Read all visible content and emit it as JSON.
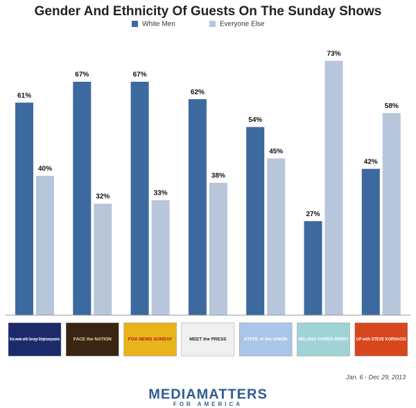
{
  "chart_data": {
    "type": "bar",
    "title": "Gender And Ethnicity Of Guests On The Sunday Shows",
    "categories": [
      "this week with George Stephanopoulos",
      "FACE the NATION",
      "FOX NEWS SUNDAY",
      "MEET the PRESS",
      "STATE of the UNION",
      "MELISSA HARRIS-PERRY",
      "UP with STEVE KORNACKI"
    ],
    "series": [
      {
        "name": "White Men",
        "color": "#3d6a9e",
        "values": [
          61,
          67,
          67,
          62,
          54,
          27,
          42
        ],
        "value_labels": [
          "61%",
          "67%",
          "67%",
          "62%",
          "54%",
          "27%",
          "42%"
        ]
      },
      {
        "name": "Everyone Else",
        "color": "#b7c6da",
        "values": [
          40,
          32,
          33,
          38,
          45,
          73,
          58
        ],
        "value_labels": [
          "40%",
          "32%",
          "33%",
          "38%",
          "45%",
          "73%",
          "58%"
        ]
      }
    ],
    "legend": "top",
    "note": "Jan. 6 - Dec 29, 2013",
    "footer": {
      "brand": "MEDIAMATTERS",
      "tagline": "FOR AMERICA"
    }
  }
}
